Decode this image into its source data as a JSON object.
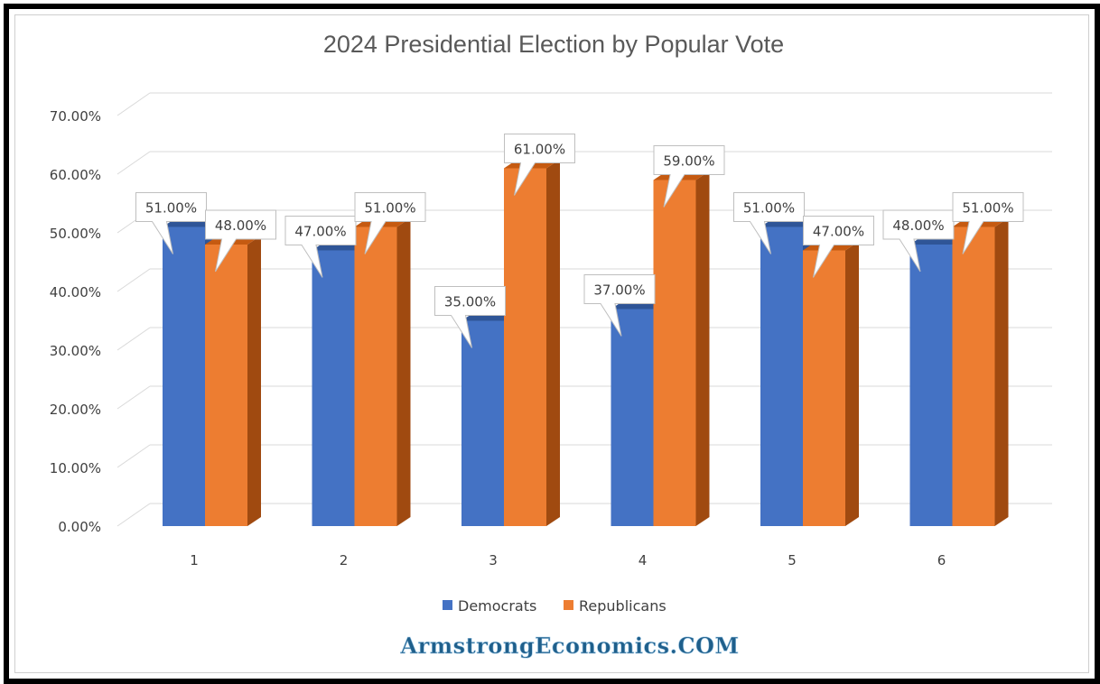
{
  "chart_data": {
    "type": "bar",
    "title": "2024 Presidential Election by Popular Vote",
    "categories": [
      "1",
      "2",
      "3",
      "4",
      "5",
      "6"
    ],
    "series": [
      {
        "name": "Democrats",
        "values": [
          51,
          47,
          35,
          37,
          51,
          48
        ],
        "labels": [
          "51.00%",
          "47.00%",
          "35.00%",
          "37.00%",
          "51.00%",
          "48.00%"
        ]
      },
      {
        "name": "Republicans",
        "values": [
          48,
          51,
          61,
          59,
          47,
          51
        ],
        "labels": [
          "48.00%",
          "51.00%",
          "61.00%",
          "59.00%",
          "47.00%",
          "51.00%"
        ]
      }
    ],
    "ylim": [
      0,
      70
    ],
    "yticks": [
      "0.00%",
      "10.00%",
      "20.00%",
      "30.00%",
      "40.00%",
      "50.00%",
      "60.00%",
      "70.00%"
    ],
    "grid": true,
    "legend_position": "bottom",
    "style": "3d-clustered-column",
    "colors": {
      "Democrats": "#4472c4",
      "Republicans": "#ed7d31"
    }
  },
  "watermark": "ArmstrongEconomics.COM"
}
